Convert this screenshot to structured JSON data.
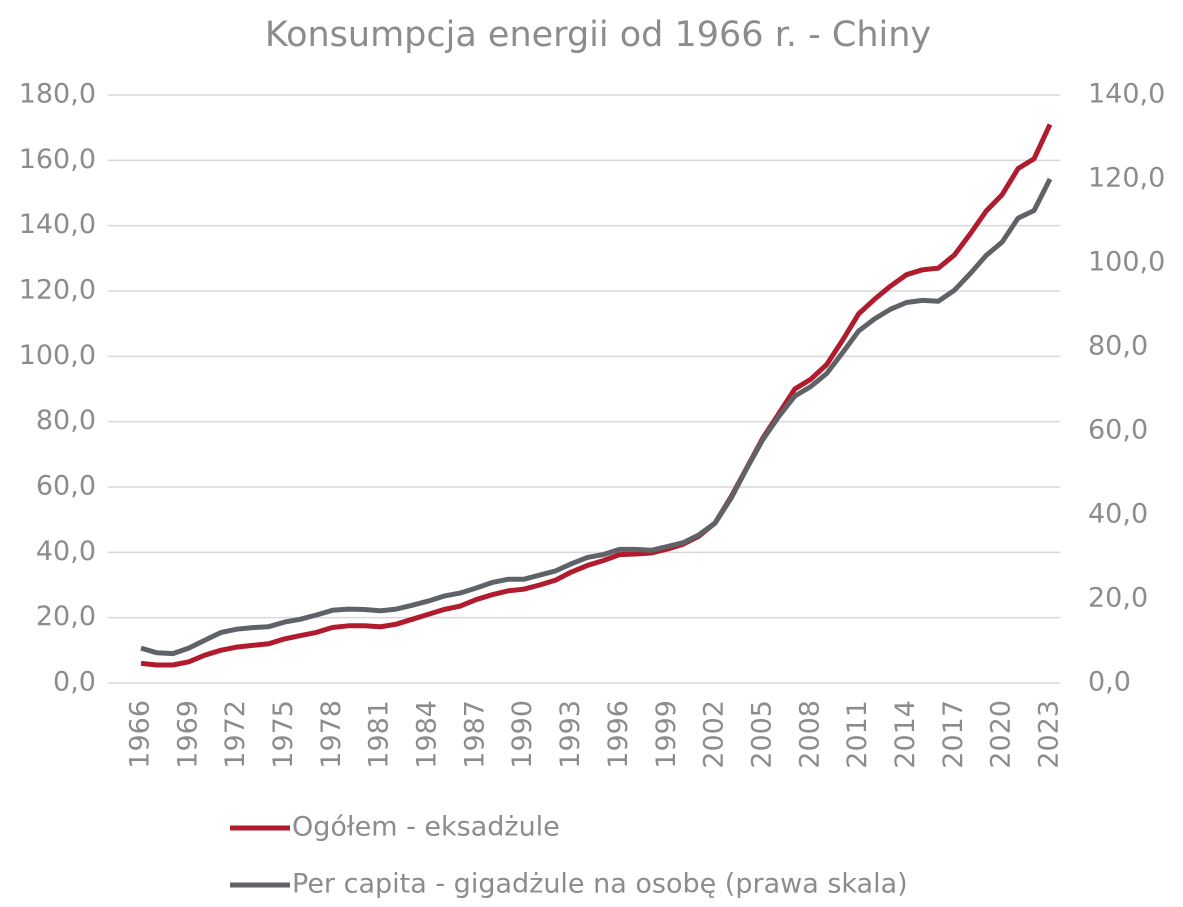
{
  "chart_data": {
    "type": "line",
    "title": "Konsumpcja energii od 1966 r. - Chiny",
    "x": [
      1966,
      1967,
      1968,
      1969,
      1970,
      1971,
      1972,
      1973,
      1974,
      1975,
      1976,
      1977,
      1978,
      1979,
      1980,
      1981,
      1982,
      1983,
      1984,
      1985,
      1986,
      1987,
      1988,
      1989,
      1990,
      1991,
      1992,
      1993,
      1994,
      1995,
      1996,
      1997,
      1998,
      1999,
      2000,
      2001,
      2002,
      2003,
      2004,
      2005,
      2006,
      2007,
      2008,
      2009,
      2010,
      2011,
      2012,
      2013,
      2014,
      2015,
      2016,
      2017,
      2018,
      2019,
      2020,
      2021,
      2022,
      2023
    ],
    "xlim": [
      1966,
      2023
    ],
    "xticks": [
      1966,
      1969,
      1972,
      1975,
      1978,
      1981,
      1984,
      1987,
      1990,
      1993,
      1996,
      1999,
      2002,
      2005,
      2008,
      2011,
      2014,
      2017,
      2020,
      2023
    ],
    "ylim": [
      0,
      180
    ],
    "yticks": [
      {
        "value": 0,
        "label": "0,0"
      },
      {
        "value": 20,
        "label": "20,0"
      },
      {
        "value": 40,
        "label": "40,0"
      },
      {
        "value": 60,
        "label": "60,0"
      },
      {
        "value": 80,
        "label": "80,0"
      },
      {
        "value": 100,
        "label": "100,0"
      },
      {
        "value": 120,
        "label": "120,0"
      },
      {
        "value": 140,
        "label": "140,0"
      },
      {
        "value": 160,
        "label": "160,0"
      },
      {
        "value": 180,
        "label": "180,0"
      }
    ],
    "y2lim": [
      0,
      140
    ],
    "y2ticks": [
      {
        "value": 0,
        "label": "0,0"
      },
      {
        "value": 20,
        "label": "20,0"
      },
      {
        "value": 40,
        "label": "40,0"
      },
      {
        "value": 60,
        "label": "60,0"
      },
      {
        "value": 80,
        "label": "80,0"
      },
      {
        "value": 100,
        "label": "100,0"
      },
      {
        "value": 120,
        "label": "120,0"
      },
      {
        "value": 140,
        "label": "140,0"
      }
    ],
    "grid": true,
    "legend": "bottom",
    "series": [
      {
        "name": "Ogółem - eksadżule",
        "color": "#b01c2e",
        "values": [
          6.0,
          5.5,
          5.5,
          6.5,
          8.5,
          10,
          11,
          11.5,
          12,
          13.5,
          14.5,
          15.5,
          17,
          17.5,
          17.5,
          17.2,
          18,
          19.5,
          21,
          22.5,
          23.5,
          25.5,
          27,
          28.2,
          28.7,
          30,
          31.5,
          34,
          36,
          37.5,
          39.3,
          39.5,
          39.8,
          41,
          42.5,
          45,
          49,
          57,
          66,
          75,
          82.5,
          90,
          93,
          97.5,
          105,
          113,
          117.5,
          121.5,
          125,
          126.5,
          127,
          131,
          137.5,
          144.5,
          149.5,
          157.5,
          160.5,
          171
        ]
      },
      {
        "name": "Per capita - gigadżule na osobę (prawa skala)",
        "color": "#5f6368",
        "axis": "y2",
        "values": [
          8.3,
          7.2,
          7.0,
          8.3,
          10.2,
          12,
          12.8,
          13.2,
          13.4,
          14.5,
          15.2,
          16.2,
          17.3,
          17.6,
          17.5,
          17.2,
          17.6,
          18.5,
          19.5,
          20.7,
          21.4,
          22.6,
          23.9,
          24.7,
          24.7,
          25.7,
          26.7,
          28.4,
          29.9,
          30.6,
          31.8,
          31.8,
          31.6,
          32.5,
          33.4,
          35.3,
          38.1,
          44.0,
          51.2,
          58,
          63.5,
          68.3,
          70.6,
          73.7,
          78.7,
          83.8,
          86.7,
          89,
          90.6,
          91.1,
          90.9,
          93.5,
          97.5,
          101.8,
          105,
          110.7,
          112.5,
          120
        ]
      }
    ]
  }
}
